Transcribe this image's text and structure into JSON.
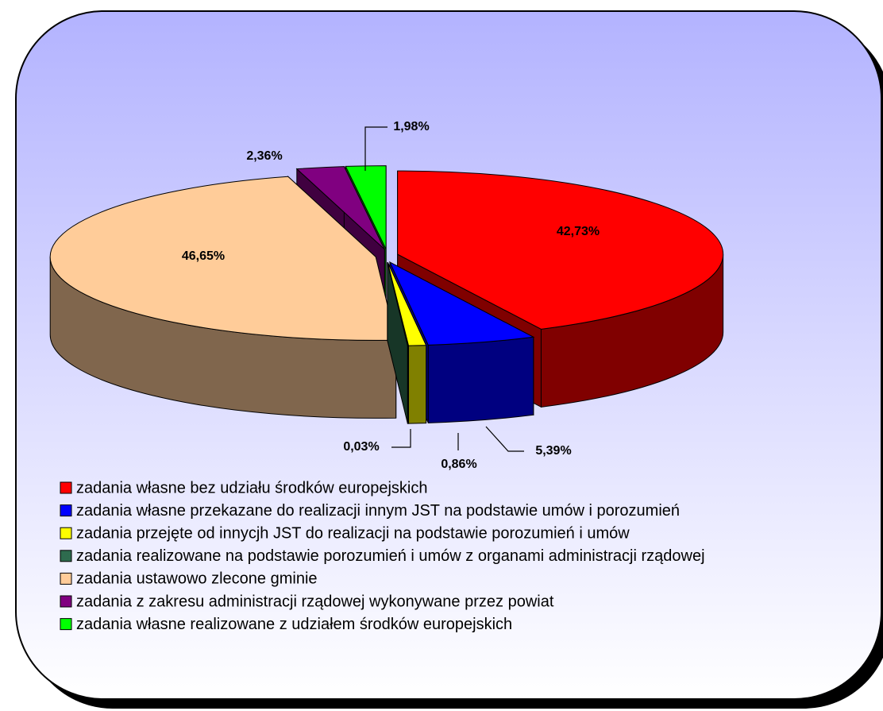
{
  "chart_data": {
    "type": "pie",
    "categories": [
      "zadania własne bez udziału środków europejskich",
      "zadania własne przekazane do realizacji innym JST na podstawie umów i porozumień",
      "zadania przejęte od innycjh JST do realizacji na podstawie porozumień i umów",
      "zadania realizowane na podstawie porozumień i umów z organami administracji rządowej",
      "zadania ustawowo zlecone gminie",
      "zadania z zakresu administracji rządowej wykonywane przez powiat",
      "zadania własne realizowane z udziałem środków europejskich"
    ],
    "values": [
      42.73,
      5.39,
      0.86,
      0.03,
      46.65,
      2.36,
      1.98
    ],
    "value_labels": [
      "42,73%",
      "5,39%",
      "0,86%",
      "0,03%",
      "46,65%",
      "2,36%",
      "1,98%"
    ],
    "colors": [
      "#ff0000",
      "#0000ff",
      "#ffff00",
      "#2e6b4e",
      "#ffcc99",
      "#800080",
      "#00ff00"
    ],
    "legend": "bottom"
  }
}
